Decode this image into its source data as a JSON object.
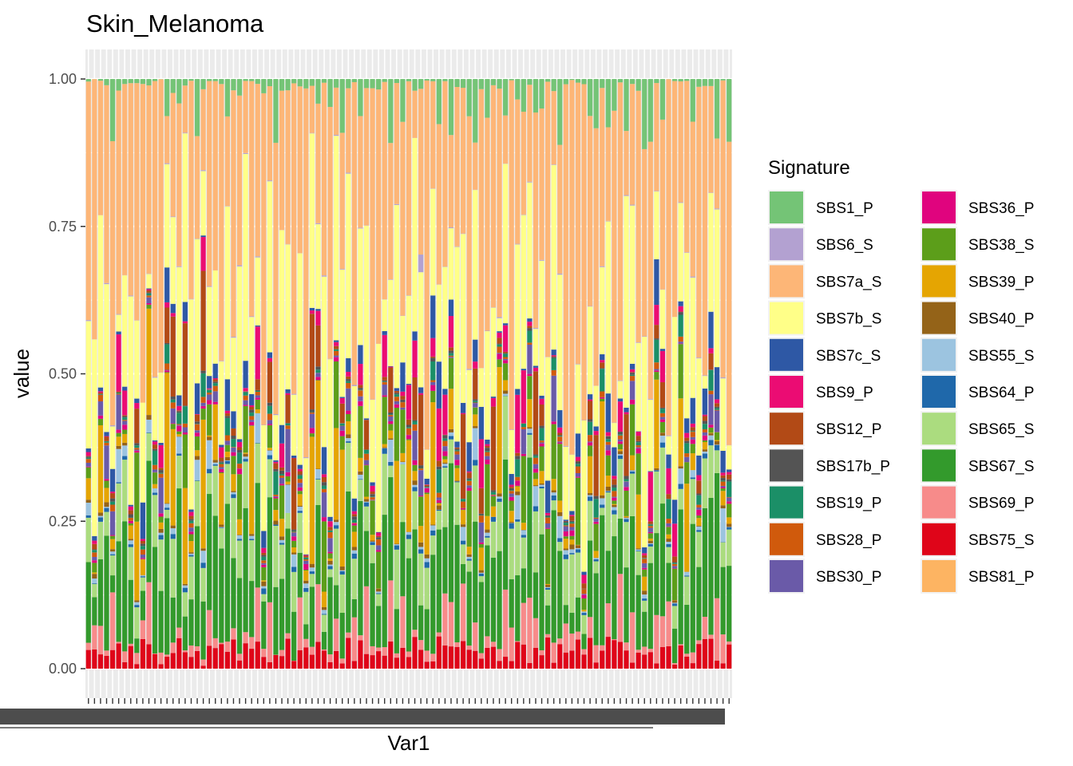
{
  "chart_data": {
    "type": "bar",
    "stacked": true,
    "title": "Skin_Melanoma",
    "xlabel": "Var1",
    "ylabel": "value",
    "ylim": [
      0,
      1
    ],
    "yticks": [
      "0.00",
      "0.25",
      "0.50",
      "0.75",
      "1.00"
    ],
    "n_samples": 107,
    "legend": {
      "title": "Signature",
      "placement": "right",
      "columns": 2
    },
    "signatures": [
      {
        "name": "SBS1_P",
        "color": "#74C476"
      },
      {
        "name": "SBS6_S",
        "color": "#B3A1D1"
      },
      {
        "name": "SBS7a_S",
        "color": "#FDB677"
      },
      {
        "name": "SBS7b_S",
        "color": "#FFFF88"
      },
      {
        "name": "SBS7c_S",
        "color": "#2E58A5"
      },
      {
        "name": "SBS9_P",
        "color": "#EB0C73"
      },
      {
        "name": "SBS12_P",
        "color": "#B24A16"
      },
      {
        "name": "SBS17b_P",
        "color": "#545454"
      },
      {
        "name": "SBS19_P",
        "color": "#1B8F67"
      },
      {
        "name": "SBS28_P",
        "color": "#D05A0C"
      },
      {
        "name": "SBS30_P",
        "color": "#6A5AA8"
      },
      {
        "name": "SBS36_P",
        "color": "#E0047E"
      },
      {
        "name": "SBS38_S",
        "color": "#5C9E1A"
      },
      {
        "name": "SBS39_P",
        "color": "#E5A502"
      },
      {
        "name": "SBS40_P",
        "color": "#946318"
      },
      {
        "name": "SBS55_S",
        "color": "#9CC4E0"
      },
      {
        "name": "SBS64_P",
        "color": "#1F68AA"
      },
      {
        "name": "SBS65_S",
        "color": "#ABDC7F"
      },
      {
        "name": "SBS67_S",
        "color": "#339A2C"
      },
      {
        "name": "SBS69_P",
        "color": "#F78B8A"
      },
      {
        "name": "SBS75_S",
        "color": "#DF0519"
      },
      {
        "name": "SBS81_P",
        "color": "#FDB462"
      }
    ],
    "grid": true,
    "panel_background": "#ebebeb"
  }
}
